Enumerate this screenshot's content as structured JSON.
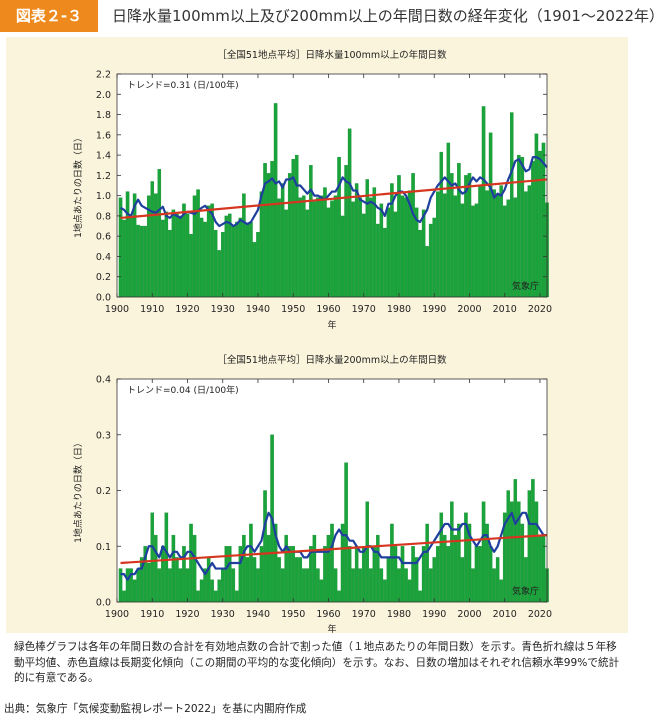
{
  "header": {
    "badge": "図表２‑３",
    "title": "日降水量100mm以上及び200mm以上の年間日数の経年変化（1901〜2022年）"
  },
  "caption": "緑色棒グラフは各年の年間日数の合計を有効地点数の合計で割った値（１地点あたりの年間日数）を示す。青色折れ線は５年移動平均値、赤色直線は長期変化傾向（この期間の平均的な変化傾向）を示す。なお、日数の増加はそれぞれ信頼水準99%で統計的に有意である。",
  "source": "出典：気象庁「気候変動監視レポート2022」を基に内閣府作成",
  "colors": {
    "bar": "#1aa33a",
    "bar_edge": "#0f8a2a",
    "moving_avg": "#1f3f9e",
    "trend": "#d6361f",
    "panel": "#fbf4dc",
    "badge": "#ee8a1d"
  },
  "chart_data": [
    {
      "type": "bar",
      "title": "［全国51地点平均］日降水量100mm以上の年間日数",
      "trend_text": "トレンド=0.31 (日/100年)",
      "credit": "気象庁",
      "xlabel": "年",
      "ylabel": "1地点あたりの日数（日）",
      "ylim": [
        0,
        2.2
      ],
      "yticks": [
        "0.0",
        "0.2",
        "0.4",
        "0.6",
        "0.8",
        "1.0",
        "1.2",
        "1.4",
        "1.6",
        "1.8",
        "2.0",
        "2.2"
      ],
      "xlim": [
        1900,
        2022
      ],
      "xticks": [
        "1900",
        "1910",
        "1920",
        "1930",
        "1940",
        "1950",
        "1960",
        "1970",
        "1980",
        "1990",
        "2000",
        "2010",
        "2020"
      ],
      "x_start": 1901,
      "values": [
        0.98,
        0.76,
        1.04,
        0.8,
        1.02,
        0.71,
        0.7,
        0.7,
        1.0,
        1.14,
        1.02,
        1.26,
        0.76,
        0.84,
        0.66,
        0.86,
        0.82,
        0.8,
        0.92,
        0.82,
        0.62,
        1.0,
        1.06,
        0.78,
        0.74,
        0.9,
        0.92,
        0.66,
        0.46,
        0.64,
        0.8,
        0.82,
        0.7,
        0.74,
        0.78,
        1.02,
        0.72,
        0.74,
        0.54,
        0.64,
        1.04,
        1.32,
        1.22,
        1.34,
        1.91,
        0.97,
        1.12,
        0.86,
        1.22,
        1.36,
        1.4,
        0.98,
        1.0,
        0.86,
        1.3,
        0.94,
        0.98,
        1.0,
        1.08,
        0.88,
        0.95,
        1.0,
        1.38,
        0.8,
        1.3,
        1.66,
        0.94,
        1.12,
        0.98,
        0.82,
        1.16,
        0.98,
        1.08,
        0.72,
        0.92,
        0.68,
        0.88,
        1.12,
        0.84,
        1.2,
        1.0,
        0.98,
        1.05,
        1.22,
        0.88,
        0.66,
        0.86,
        0.5,
        0.72,
        0.78,
        1.04,
        1.43,
        1.02,
        1.52,
        1.22,
        1.0,
        1.32,
        0.92,
        1.2,
        1.22,
        0.9,
        0.92,
        1.1,
        1.88,
        1.05,
        1.62,
        1.06,
        1.02,
        1.1,
        0.9,
        0.96,
        1.82,
        0.98,
        1.4,
        1.38,
        1.04,
        1.1,
        1.34,
        1.61,
        1.44,
        1.52,
        0.93
      ],
      "moving_avg": [
        0.88,
        0.86,
        0.82,
        0.8,
        0.9,
        0.96,
        0.9,
        0.88,
        0.86,
        0.84,
        0.83,
        0.86,
        0.89,
        0.8,
        0.78,
        0.82,
        0.8,
        0.78,
        0.82,
        0.84,
        0.83,
        0.82,
        0.85,
        0.88,
        0.9,
        0.86,
        0.82,
        0.74,
        0.7,
        0.72,
        0.74,
        0.73,
        0.7,
        0.72,
        0.76,
        0.74,
        0.72,
        0.74,
        0.8,
        0.86,
        1.0,
        1.12,
        1.14,
        1.17,
        1.12,
        1.14,
        1.08,
        1.16,
        1.16,
        1.18,
        1.1,
        1.1,
        1.06,
        1.02,
        1.06,
        1.0,
        1.0,
        0.98,
        0.96,
        1.0,
        1.04,
        1.04,
        1.1,
        1.18,
        1.14,
        1.12,
        1.05,
        1.05,
        0.96,
        0.94,
        0.92,
        0.94,
        0.92,
        0.88,
        0.86,
        0.8,
        0.92,
        0.92,
        1.0,
        1.04,
        1.04,
        1.0,
        0.92,
        0.82,
        0.76,
        0.74,
        0.8,
        0.86,
        0.98,
        1.04,
        1.1,
        1.14,
        1.18,
        1.14,
        1.1,
        1.12,
        1.06,
        1.02,
        1.04,
        1.12,
        1.18,
        1.14,
        1.18,
        1.16,
        1.12,
        1.08,
        0.98,
        1.02,
        1.0,
        1.06,
        1.16,
        1.24,
        1.34,
        1.36,
        1.3,
        1.24,
        1.26,
        1.38,
        1.38,
        1.36,
        1.32,
        1.28
      ],
      "trend_line": {
        "x": [
          1901,
          2022
        ],
        "y": [
          0.78,
          1.16
        ]
      }
    },
    {
      "type": "bar",
      "title": "［全国51地点平均］日降水量200mm以上の年間日数",
      "trend_text": "トレンド=0.04 (日/100年)",
      "credit": "気象庁",
      "xlabel": "年",
      "ylabel": "1地点あたりの日数（日）",
      "ylim": [
        0,
        0.4
      ],
      "yticks": [
        "0.0",
        "0.1",
        "0.2",
        "0.3",
        "0.4"
      ],
      "xlim": [
        1900,
        2022
      ],
      "xticks": [
        "1900",
        "1910",
        "1920",
        "1930",
        "1940",
        "1950",
        "1960",
        "1970",
        "1980",
        "1990",
        "2000",
        "2010",
        "2020"
      ],
      "x_start": 1901,
      "values": [
        0.06,
        0.02,
        0.06,
        0.06,
        0.04,
        0.06,
        0.08,
        0.1,
        0.07,
        0.16,
        0.12,
        0.06,
        0.1,
        0.16,
        0.06,
        0.12,
        0.08,
        0.06,
        0.1,
        0.06,
        0.14,
        0.12,
        0.02,
        0.04,
        0.06,
        0.08,
        0.04,
        0.02,
        0.04,
        0.06,
        0.1,
        0.1,
        0.06,
        0.02,
        0.1,
        0.12,
        0.08,
        0.14,
        0.08,
        0.06,
        0.1,
        0.2,
        0.12,
        0.3,
        0.14,
        0.08,
        0.06,
        0.12,
        0.1,
        0.1,
        0.08,
        0.08,
        0.06,
        0.06,
        0.1,
        0.12,
        0.06,
        0.04,
        0.1,
        0.12,
        0.14,
        0.06,
        0.02,
        0.14,
        0.25,
        0.1,
        0.06,
        0.1,
        0.06,
        0.1,
        0.18,
        0.06,
        0.1,
        0.12,
        0.06,
        0.04,
        0.08,
        0.14,
        0.1,
        0.06,
        0.1,
        0.06,
        0.04,
        0.1,
        0.08,
        0.02,
        0.1,
        0.14,
        0.06,
        0.08,
        0.1,
        0.16,
        0.12,
        0.1,
        0.18,
        0.12,
        0.14,
        0.08,
        0.16,
        0.14,
        0.06,
        0.1,
        0.1,
        0.18,
        0.14,
        0.1,
        0.06,
        0.08,
        0.04,
        0.16,
        0.2,
        0.18,
        0.22,
        0.18,
        0.14,
        0.08,
        0.2,
        0.22,
        0.18,
        0.12,
        0.12,
        0.06
      ],
      "moving_avg": [
        0.05,
        0.05,
        0.04,
        0.05,
        0.05,
        0.06,
        0.06,
        0.08,
        0.1,
        0.1,
        0.09,
        0.08,
        0.1,
        0.09,
        0.08,
        0.09,
        0.09,
        0.08,
        0.08,
        0.09,
        0.09,
        0.08,
        0.07,
        0.06,
        0.05,
        0.06,
        0.07,
        0.06,
        0.06,
        0.06,
        0.06,
        0.07,
        0.07,
        0.07,
        0.07,
        0.09,
        0.1,
        0.1,
        0.09,
        0.1,
        0.11,
        0.14,
        0.16,
        0.15,
        0.12,
        0.1,
        0.09,
        0.1,
        0.09,
        0.09,
        0.09,
        0.09,
        0.08,
        0.08,
        0.09,
        0.09,
        0.09,
        0.09,
        0.09,
        0.09,
        0.1,
        0.12,
        0.13,
        0.12,
        0.12,
        0.11,
        0.11,
        0.1,
        0.09,
        0.09,
        0.1,
        0.1,
        0.09,
        0.09,
        0.08,
        0.08,
        0.08,
        0.08,
        0.08,
        0.08,
        0.07,
        0.07,
        0.07,
        0.07,
        0.07,
        0.08,
        0.09,
        0.09,
        0.1,
        0.11,
        0.12,
        0.13,
        0.14,
        0.14,
        0.13,
        0.13,
        0.13,
        0.14,
        0.14,
        0.12,
        0.11,
        0.1,
        0.11,
        0.12,
        0.12,
        0.1,
        0.09,
        0.1,
        0.12,
        0.14,
        0.15,
        0.16,
        0.14,
        0.15,
        0.16,
        0.16,
        0.14,
        0.14,
        0.14,
        0.13,
        0.12,
        0.12
      ],
      "trend_line": {
        "x": [
          1901,
          2022
        ],
        "y": [
          0.07,
          0.12
        ]
      }
    }
  ]
}
